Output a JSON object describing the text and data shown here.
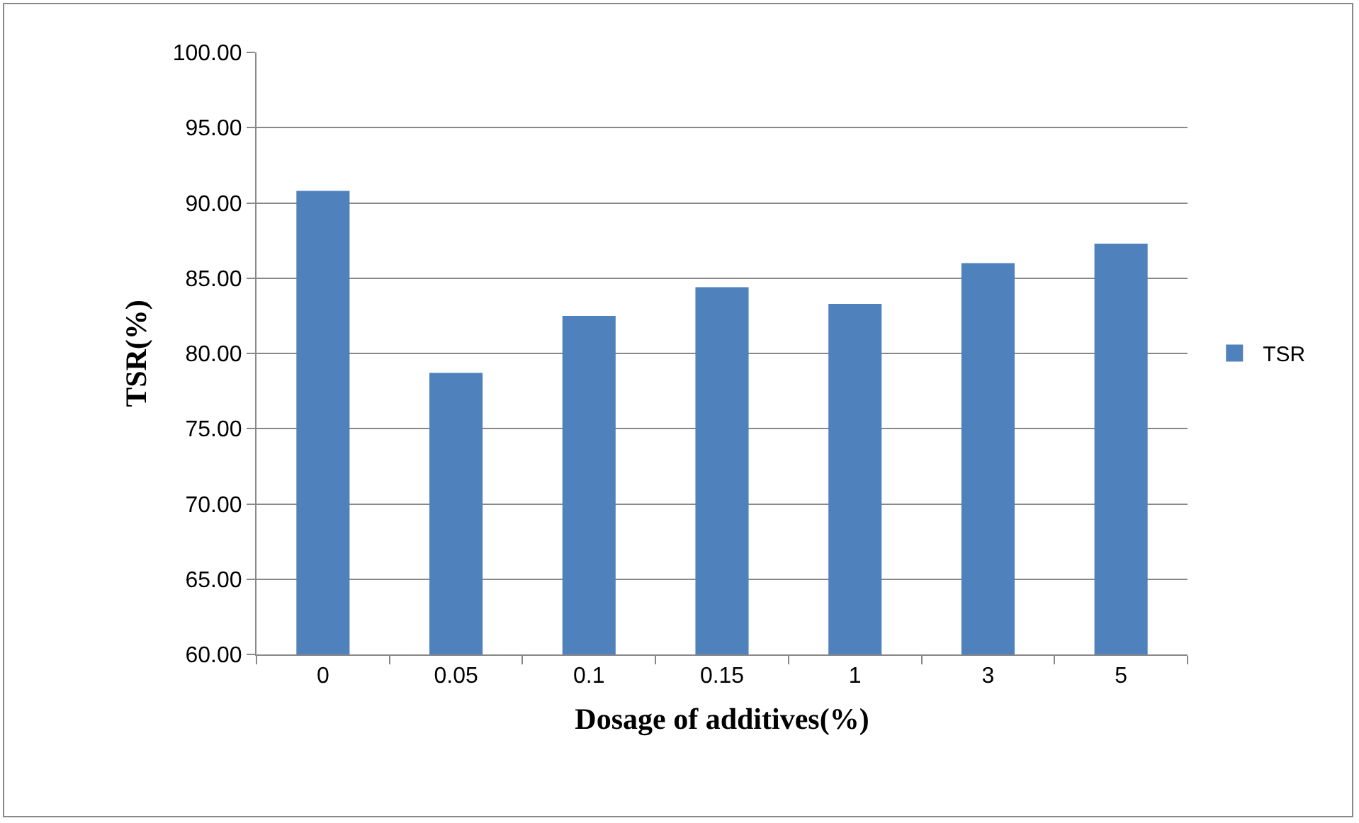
{
  "chart_data": {
    "type": "bar",
    "xlabel": "Dosage of additives(%)",
    "ylabel": "TSR(%)",
    "categories": [
      "0",
      "0.05",
      "0.1",
      "0.15",
      "1",
      "3",
      "5"
    ],
    "series": [
      {
        "name": "TSR",
        "color": "#4f81bd",
        "values": [
          90.8,
          78.7,
          82.5,
          84.4,
          83.3,
          86.0,
          87.3
        ]
      }
    ],
    "ylim": [
      60,
      100
    ],
    "yticks": [
      {
        "value": 60,
        "label": "60.00"
      },
      {
        "value": 65,
        "label": "65.00"
      },
      {
        "value": 70,
        "label": "70.00"
      },
      {
        "value": 75,
        "label": "75.00"
      },
      {
        "value": 80,
        "label": "80.00"
      },
      {
        "value": 85,
        "label": "85.00"
      },
      {
        "value": 90,
        "label": "90.00"
      },
      {
        "value": 95,
        "label": "95.00"
      },
      {
        "value": 100,
        "label": "100.00"
      }
    ],
    "grid": "y",
    "legend": "right"
  }
}
